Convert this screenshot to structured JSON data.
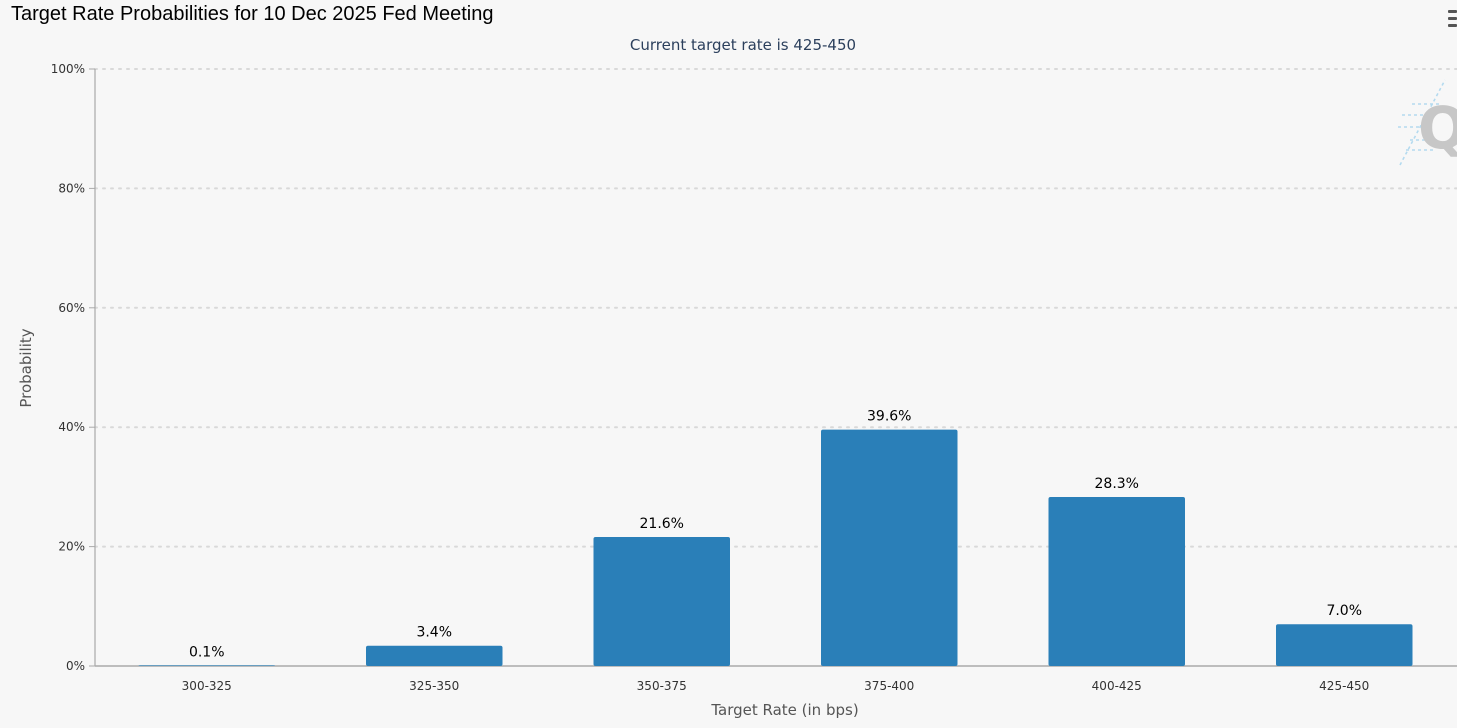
{
  "title": "Target Rate Probabilities for 10 Dec 2025 Fed Meeting",
  "menu_icon": "hamburger-menu-icon",
  "logo_icon": "q-watermark-icon",
  "colors": {
    "bar": "#2a7fb8",
    "background": "#f7f7f7",
    "grid": "#d9d9d9",
    "axis": "#aaaaaa"
  },
  "chart_data": {
    "type": "bar",
    "title": "Target Rate Probabilities for 10 Dec 2025 Fed Meeting",
    "subtitle": "Current target rate is 425-450",
    "xlabel": "Target Rate (in bps)",
    "ylabel": "Probability",
    "categories": [
      "300-325",
      "325-350",
      "350-375",
      "375-400",
      "400-425",
      "425-450"
    ],
    "values": [
      0.1,
      3.4,
      21.6,
      39.6,
      28.3,
      7.0
    ],
    "data_labels": [
      "0.1%",
      "3.4%",
      "21.6%",
      "39.6%",
      "28.3%",
      "7.0%"
    ],
    "y_ticks": [
      "0%",
      "20%",
      "40%",
      "60%",
      "80%",
      "100%"
    ],
    "ylim": [
      0,
      100
    ],
    "grid": true,
    "legend": "none"
  }
}
